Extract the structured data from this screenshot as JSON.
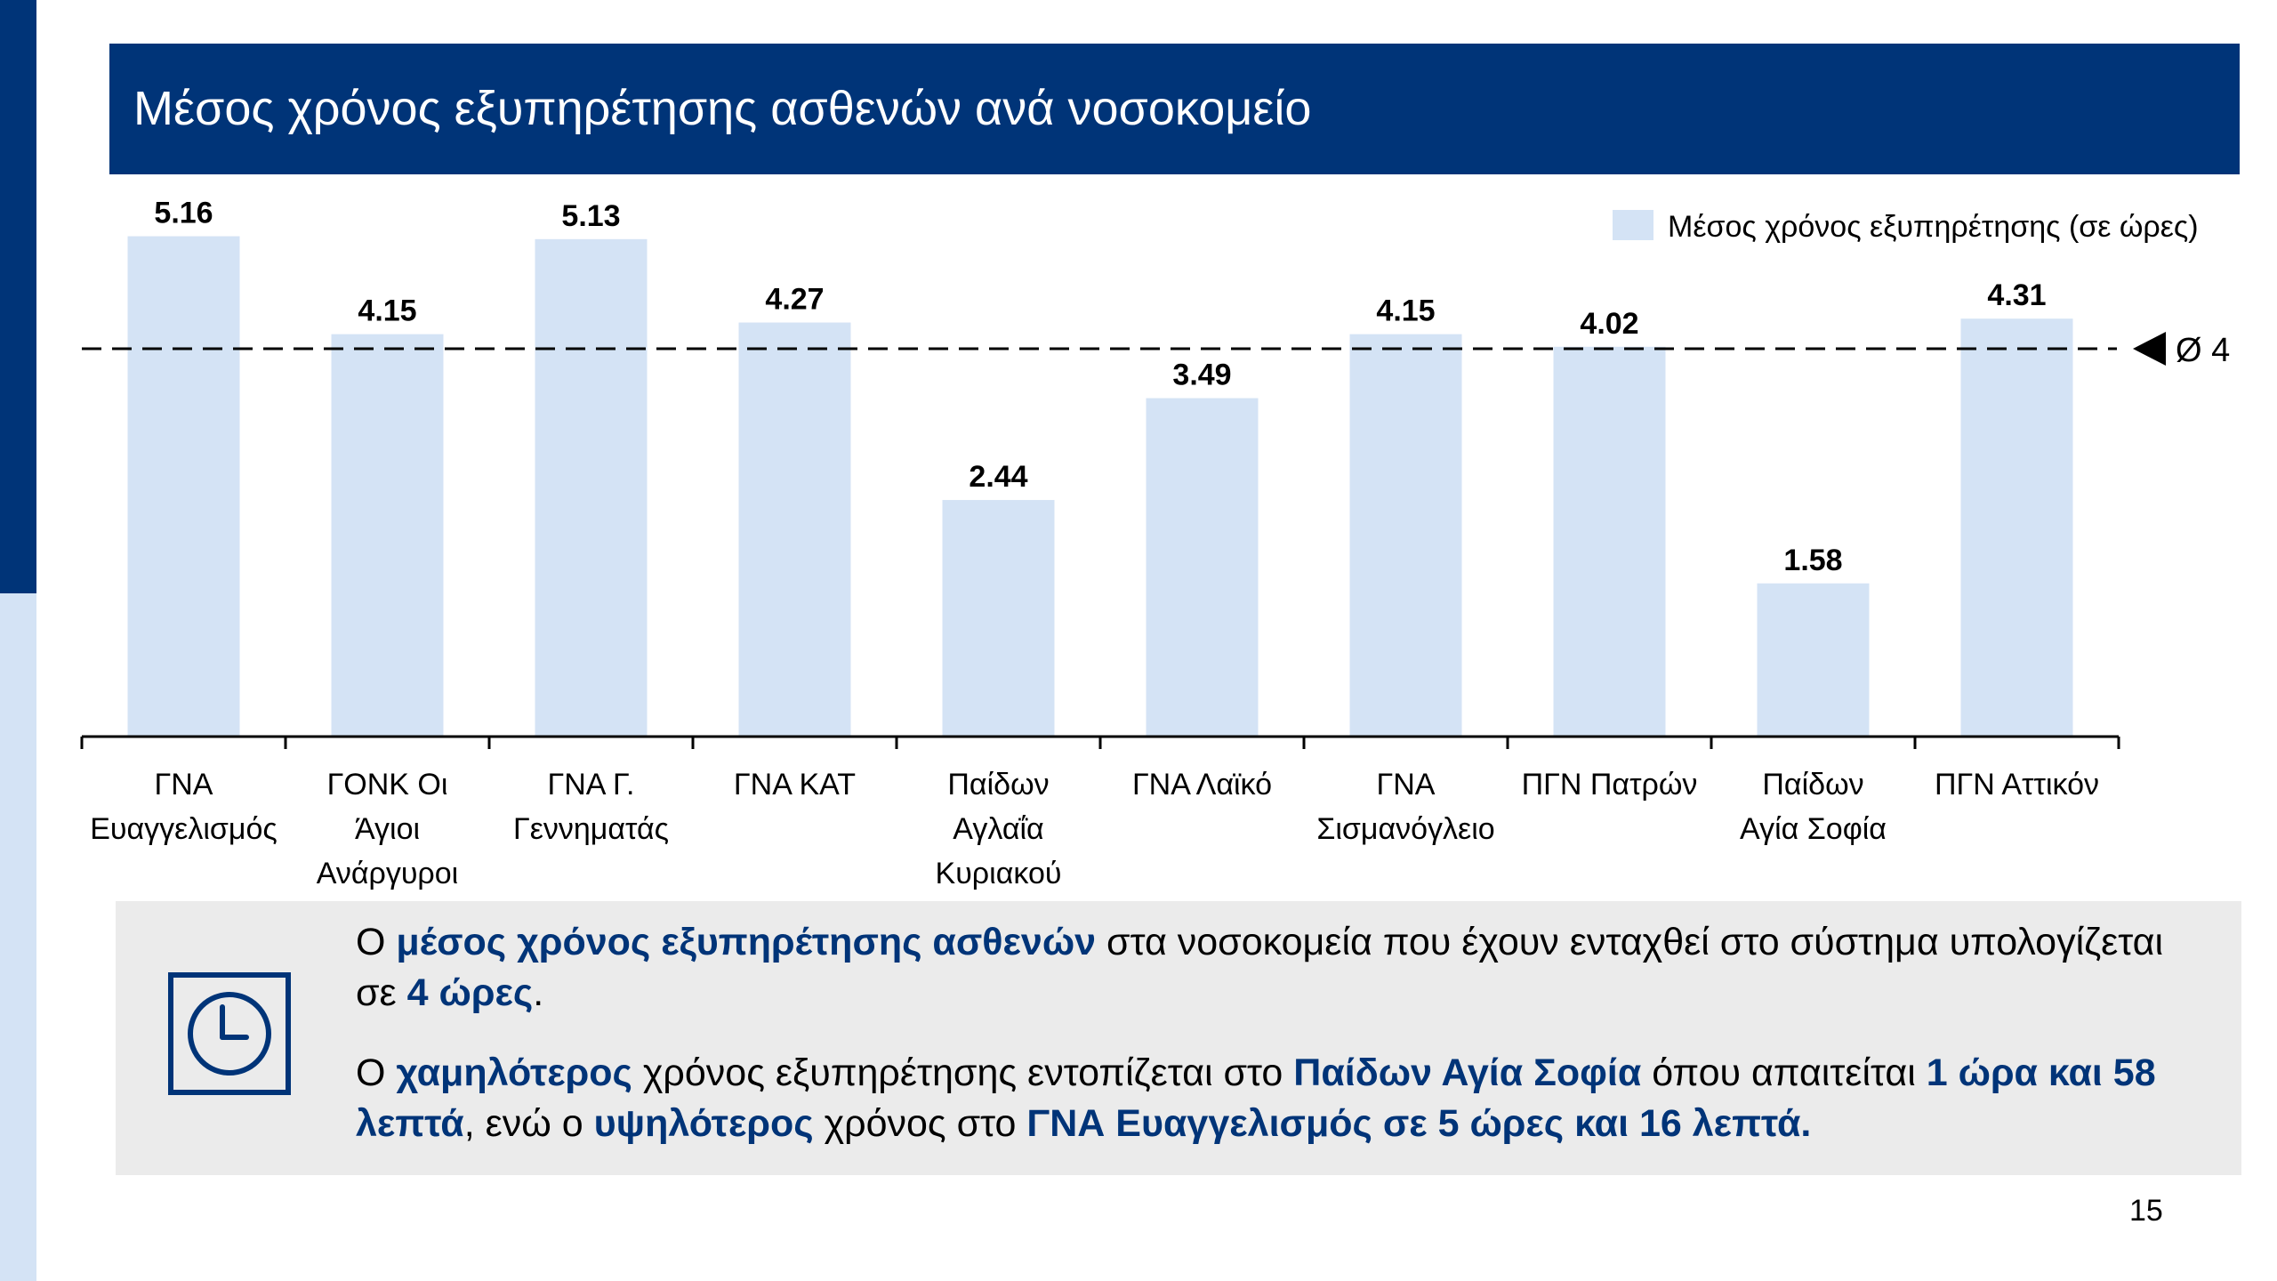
{
  "title": "Μέσος χρόνος εξυπηρέτησης ασθενών ανά νοσοκομείο",
  "page_number": "15",
  "chart_data": {
    "type": "bar",
    "categories": [
      [
        "ΓΝΑ",
        "Ευαγγελισμός"
      ],
      [
        "ΓΟΝΚ Οι",
        "Άγιοι",
        "Ανάργυροι"
      ],
      [
        "ΓΝΑ Γ.",
        "Γεννηματάς"
      ],
      [
        "ΓΝΑ ΚΑΤ"
      ],
      [
        "Παίδων",
        "Αγλαΐα",
        "Κυριακού"
      ],
      [
        "ΓΝΑ Λαϊκό"
      ],
      [
        "ΓΝΑ",
        "Σισμανόγλειο"
      ],
      [
        "ΠΓΝ Πατρών"
      ],
      [
        "Παίδων",
        "Αγία Σοφία"
      ],
      [
        "ΠΓΝ Αττικόν"
      ]
    ],
    "series": [
      {
        "name": "Μέσος χρόνος εξυπηρέτησης (σε ώρες)",
        "values": [
          5.16,
          4.15,
          5.13,
          4.27,
          2.44,
          3.49,
          4.15,
          4.02,
          1.58,
          4.31
        ],
        "labels": [
          "5.16",
          "4.15",
          "5.13",
          "4.27",
          "2.44",
          "3.49",
          "4.15",
          "4.02",
          "1.58",
          "4.31"
        ],
        "color": "#d4e3f5"
      }
    ],
    "reference_line": {
      "value": 4,
      "label": "Ø 4",
      "style": "dashed"
    },
    "legend_position": "top-right",
    "grid": false,
    "ylim": [
      0,
      5.6
    ]
  },
  "summary": {
    "icon": "clock-icon",
    "accent_color": "#003478",
    "paragraph1": [
      {
        "text": "Ο ",
        "hl": false
      },
      {
        "text": "μέσος χρόνος εξυπηρέτησης ασθενών",
        "hl": true
      },
      {
        "text": " στα νοσοκομεία που έχουν ενταχθεί στο σύστημα υπολογίζεται σε ",
        "hl": false
      },
      {
        "text": "4 ώρες",
        "hl": true
      },
      {
        "text": ".",
        "hl": false
      }
    ],
    "paragraph2": [
      {
        "text": "Ο ",
        "hl": false
      },
      {
        "text": "χαμηλότερος",
        "hl": true
      },
      {
        "text": " χρόνος εξυπηρέτησης εντοπίζεται στο ",
        "hl": false
      },
      {
        "text": "Παίδων Αγία Σοφία",
        "hl": true
      },
      {
        "text": " όπου απαιτείται ",
        "hl": false
      },
      {
        "text": "1 ώρα και 58 λεπτά",
        "hl": true
      },
      {
        "text": ", ενώ ο ",
        "hl": false
      },
      {
        "text": "υψηλότερος",
        "hl": true
      },
      {
        "text": " χρόνος στο ",
        "hl": false
      },
      {
        "text": "ΓΝΑ Ευαγγελισμός σε 5 ώρες και 16 λεπτά.",
        "hl": true
      }
    ]
  }
}
